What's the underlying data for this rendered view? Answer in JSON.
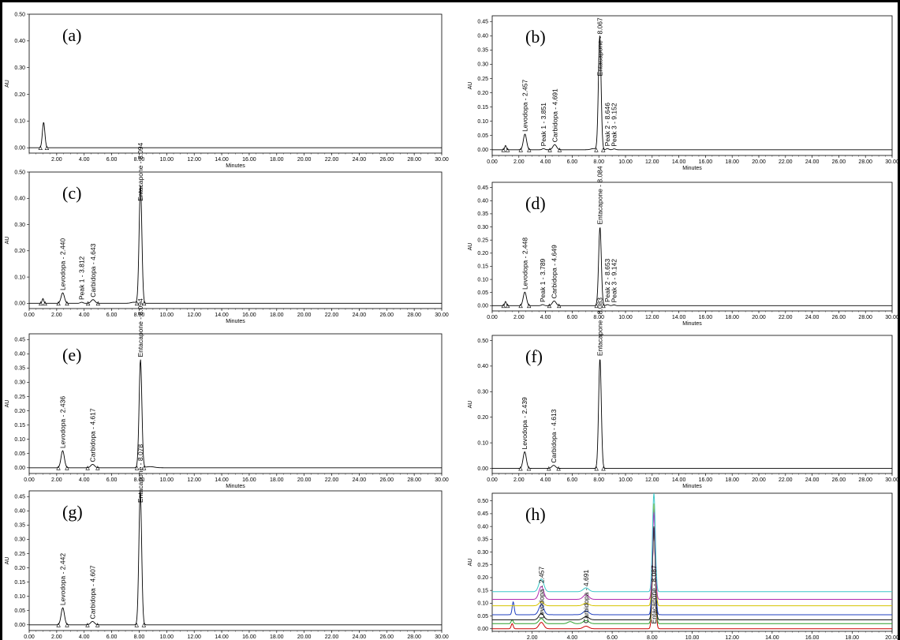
{
  "chart_data": [
    {
      "type": "line",
      "panel_label": "(a)",
      "xlabel": "Minutes",
      "ylabel": "AU",
      "xlim": [
        0,
        30
      ],
      "ylim": [
        -0.02,
        0.5
      ],
      "xticks": [
        "2.00",
        "4.00",
        "6.00",
        "8.00",
        "10.00",
        "12.00",
        "14.00",
        "16.00",
        "18.00",
        "20.00",
        "22.00",
        "24.00",
        "26.00",
        "28.00",
        "30.00"
      ],
      "yticks": [
        "0.00",
        "0.10",
        "0.20",
        "0.30",
        "0.40",
        "0.50"
      ],
      "series": [
        {
          "color": "#000000",
          "peaks": [
            {
              "rt": 1.05,
              "height": 0.095,
              "width": 0.09
            }
          ]
        }
      ],
      "labels": []
    },
    {
      "type": "line",
      "panel_label": "(b)",
      "xlabel": "Minutes",
      "ylabel": "AU",
      "xlim": [
        0,
        30
      ],
      "ylim": [
        -0.02,
        0.47
      ],
      "xticks": [
        "0.00",
        "2.00",
        "4.00",
        "6.00",
        "8.00",
        "10.00",
        "12.00",
        "14.00",
        "16.00",
        "18.00",
        "20.00",
        "22.00",
        "24.00",
        "26.00",
        "28.00",
        "30.00"
      ],
      "yticks": [
        "0.00",
        "0.05",
        "0.10",
        "0.15",
        "0.20",
        "0.25",
        "0.30",
        "0.35",
        "0.40",
        "0.45"
      ],
      "series": [
        {
          "color": "#000000",
          "peaks": [
            {
              "rt": 1.0,
              "height": 0.015,
              "width": 0.06
            },
            {
              "rt": 2.457,
              "height": 0.055,
              "width": 0.12
            },
            {
              "rt": 3.851,
              "height": 0.004,
              "width": 0.1
            },
            {
              "rt": 4.691,
              "height": 0.018,
              "width": 0.14
            },
            {
              "rt": 7.6,
              "height": 0.004,
              "width": 0.2
            },
            {
              "rt": 8.067,
              "height": 0.4,
              "width": 0.1
            },
            {
              "rt": 8.646,
              "height": 0.004,
              "width": 0.1
            },
            {
              "rt": 9.152,
              "height": 0.003,
              "width": 0.1
            }
          ]
        }
      ],
      "labels": [
        {
          "text": "Levodopa - 2.457",
          "rt": 2.457,
          "y": 0.055
        },
        {
          "text": "Peak 1 - 3.851",
          "rt": 3.851,
          "y": 0.004
        },
        {
          "text": "Carbidopa - 4.691",
          "rt": 4.691,
          "y": 0.018
        },
        {
          "text": "Entacapone - 8.067",
          "rt": 8.067,
          "y": 0.25
        },
        {
          "text": "Peak 2 - 8.646",
          "rt": 8.646,
          "y": 0.004
        },
        {
          "text": "Peak 3 - 9.152",
          "rt": 9.152,
          "y": 0.003
        }
      ]
    },
    {
      "type": "line",
      "panel_label": "(c)",
      "xlabel": "Minutes",
      "ylabel": "AU",
      "xlim": [
        0,
        30
      ],
      "ylim": [
        -0.02,
        0.5
      ],
      "xticks": [
        "0.00",
        "2.00",
        "4.00",
        "6.00",
        "8.00",
        "10.00",
        "12.00",
        "14.00",
        "16.00",
        "18.00",
        "20.00",
        "22.00",
        "24.00",
        "26.00",
        "28.00",
        "30.00"
      ],
      "yticks": [
        "0.00",
        "0.10",
        "0.20",
        "0.30",
        "0.40",
        "0.50"
      ],
      "series": [
        {
          "color": "#000000",
          "peaks": [
            {
              "rt": 1.0,
              "height": 0.018,
              "width": 0.06
            },
            {
              "rt": 2.44,
              "height": 0.04,
              "width": 0.12
            },
            {
              "rt": 3.812,
              "height": 0.004,
              "width": 0.1
            },
            {
              "rt": 4.643,
              "height": 0.014,
              "width": 0.14
            },
            {
              "rt": 7.6,
              "height": 0.004,
              "width": 0.2
            },
            {
              "rt": 8.094,
              "height": 0.45,
              "width": 0.1
            }
          ]
        }
      ],
      "labels": [
        {
          "text": "Levodopa - 2.440",
          "rt": 2.44,
          "y": 0.04
        },
        {
          "text": "Peak 1 - 3.812",
          "rt": 3.812,
          "y": 0.004
        },
        {
          "text": "Carbidopa - 4.643",
          "rt": 4.643,
          "y": 0.014
        },
        {
          "text": "Entacapone - 8.094",
          "rt": 8.094,
          "y": 0.38
        }
      ]
    },
    {
      "type": "line",
      "panel_label": "(d)",
      "xlabel": "Minutes",
      "ylabel": "AU",
      "xlim": [
        0,
        30
      ],
      "ylim": [
        -0.02,
        0.47
      ],
      "xticks": [
        "0.00",
        "2.00",
        "4.00",
        "6.00",
        "8.00",
        "10.00",
        "12.00",
        "14.00",
        "16.00",
        "18.00",
        "20.00",
        "22.00",
        "24.00",
        "26.00",
        "28.00",
        "30.00"
      ],
      "yticks": [
        "0.00",
        "0.05",
        "0.10",
        "0.15",
        "0.20",
        "0.25",
        "0.30",
        "0.35",
        "0.40",
        "0.45"
      ],
      "series": [
        {
          "color": "#000000",
          "peaks": [
            {
              "rt": 1.0,
              "height": 0.016,
              "width": 0.06
            },
            {
              "rt": 2.448,
              "height": 0.052,
              "width": 0.12
            },
            {
              "rt": 3.789,
              "height": 0.004,
              "width": 0.1
            },
            {
              "rt": 4.649,
              "height": 0.018,
              "width": 0.14
            },
            {
              "rt": 8.084,
              "height": 0.3,
              "width": 0.1
            },
            {
              "rt": 8.653,
              "height": 0.004,
              "width": 0.1
            },
            {
              "rt": 9.142,
              "height": 0.003,
              "width": 0.1
            }
          ]
        }
      ],
      "labels": [
        {
          "text": "Levodopa - 2.448",
          "rt": 2.448,
          "y": 0.052
        },
        {
          "text": "Peak 1 - 3.789",
          "rt": 3.789,
          "y": 0.004
        },
        {
          "text": "Carbidopa - 4.649",
          "rt": 4.649,
          "y": 0.018
        },
        {
          "text": "Entacapone - 8.084",
          "rt": 8.084,
          "y": 0.3
        },
        {
          "text": "Peak 2 - 8.653",
          "rt": 8.653,
          "y": 0.004
        },
        {
          "text": "Peak 3 - 9.142",
          "rt": 9.142,
          "y": 0.003
        }
      ]
    },
    {
      "type": "line",
      "panel_label": "(e)",
      "xlabel": "Minutes",
      "ylabel": "AU",
      "xlim": [
        0,
        30
      ],
      "ylim": [
        -0.02,
        0.47
      ],
      "xticks": [
        "0.00",
        "2.00",
        "4.00",
        "6.00",
        "8.00",
        "10.00",
        "12.00",
        "14.00",
        "16.00",
        "18.00",
        "20.00",
        "22.00",
        "24.00",
        "26.00",
        "28.00",
        "30.00"
      ],
      "yticks": [
        "0.00",
        "0.05",
        "0.10",
        "0.15",
        "0.20",
        "0.25",
        "0.30",
        "0.35",
        "0.40",
        "0.45"
      ],
      "series": [
        {
          "color": "#000000",
          "peaks": [
            {
              "rt": 2.436,
              "height": 0.06,
              "width": 0.12
            },
            {
              "rt": 4.617,
              "height": 0.012,
              "width": 0.14
            },
            {
              "rt": 8.094,
              "height": 0.38,
              "width": 0.1
            },
            {
              "rt": 8.8,
              "height": 0.004,
              "width": 0.3
            }
          ]
        }
      ],
      "labels": [
        {
          "text": "Levodopa - 2.436",
          "rt": 2.436,
          "y": 0.06
        },
        {
          "text": "Carbidopa - 4.617",
          "rt": 4.617,
          "y": 0.012
        },
        {
          "text": "Entacapone - 8.094",
          "rt": 8.094,
          "y": 0.38
        }
      ]
    },
    {
      "type": "line",
      "panel_label": "(f)",
      "xlabel": "Minutes",
      "ylabel": "AU",
      "xlim": [
        0,
        30
      ],
      "ylim": [
        -0.02,
        0.52
      ],
      "xticks": [
        "0.00",
        "2.00",
        "4.00",
        "6.00",
        "8.00",
        "10.00",
        "12.00",
        "14.00",
        "16.00",
        "18.00",
        "20.00",
        "22.00",
        "24.00",
        "26.00",
        "28.00",
        "30.00"
      ],
      "yticks": [
        "0.00",
        "0.10",
        "0.20",
        "0.30",
        "0.40",
        "0.50"
      ],
      "series": [
        {
          "color": "#000000",
          "peaks": [
            {
              "rt": 2.439,
              "height": 0.065,
              "width": 0.12
            },
            {
              "rt": 4.613,
              "height": 0.012,
              "width": 0.14
            },
            {
              "rt": 8.083,
              "height": 0.43,
              "width": 0.1
            }
          ]
        }
      ],
      "labels": [
        {
          "text": "Levodopa - 2.439",
          "rt": 2.439,
          "y": 0.065
        },
        {
          "text": "Carbidopa - 4.613",
          "rt": 4.613,
          "y": 0.012
        },
        {
          "text": "Entacapone - 8.083",
          "rt": 8.083,
          "y": 0.43
        }
      ]
    },
    {
      "type": "line",
      "panel_label": "(g)",
      "xlabel": "Minutes",
      "ylabel": "AU",
      "xlim": [
        0,
        30
      ],
      "ylim": [
        -0.02,
        0.47
      ],
      "xticks": [
        "0.00",
        "2.00",
        "4.00",
        "6.00",
        "8.00",
        "10.00",
        "12.00",
        "14.00",
        "16.00",
        "18.00",
        "20.00",
        "22.00",
        "24.00",
        "26.00",
        "28.00",
        "30.00"
      ],
      "yticks": [
        "0.00",
        "0.05",
        "0.10",
        "0.15",
        "0.20",
        "0.25",
        "0.30",
        "0.35",
        "0.40",
        "0.45"
      ],
      "series": [
        {
          "color": "#000000",
          "peaks": [
            {
              "rt": 2.442,
              "height": 0.06,
              "width": 0.12
            },
            {
              "rt": 4.607,
              "height": 0.012,
              "width": 0.14
            },
            {
              "rt": 8.078,
              "height": 0.47,
              "width": 0.1
            }
          ]
        }
      ],
      "labels": [
        {
          "text": "Levodopa - 2.442",
          "rt": 2.442,
          "y": 0.06
        },
        {
          "text": "Carbidopa - 4.607",
          "rt": 4.607,
          "y": 0.012
        },
        {
          "text": "Entacapone - 8.078",
          "rt": 8.078,
          "y": 0.42
        }
      ]
    },
    {
      "type": "line",
      "panel_label": "(h)",
      "xlabel": "",
      "ylabel": "AU",
      "xlim": [
        0,
        20
      ],
      "ylim": [
        -0.01,
        0.53
      ],
      "xticks": [
        "2.00",
        "4.00",
        "6.00",
        "8.00",
        "10.00",
        "12.00",
        "14.00",
        "16.00",
        "18.00",
        "20.00"
      ],
      "yticks": [
        "0.00",
        "0.05",
        "0.10",
        "0.15",
        "0.20",
        "0.25",
        "0.30",
        "0.35",
        "0.40",
        "0.45",
        "0.50"
      ],
      "series": [
        {
          "color": "#cc0000",
          "offset": 0.0,
          "peaks": [
            {
              "rt": 1.0,
              "height": 0.02,
              "width": 0.05
            },
            {
              "rt": 2.457,
              "height": 0.025,
              "width": 0.12
            },
            {
              "rt": 4.691,
              "height": 0.01,
              "width": 0.14
            },
            {
              "rt": 8.087,
              "height": 0.4,
              "width": 0.07
            }
          ]
        },
        {
          "color": "#2a9d2a",
          "offset": 0.02,
          "peaks": [
            {
              "rt": 1.0,
              "height": 0.015,
              "width": 0.05
            },
            {
              "rt": 2.457,
              "height": 0.02,
              "width": 0.12
            },
            {
              "rt": 3.9,
              "height": 0.008,
              "width": 0.12
            },
            {
              "rt": 4.691,
              "height": 0.012,
              "width": 0.14
            },
            {
              "rt": 8.087,
              "height": 0.38,
              "width": 0.07
            }
          ]
        },
        {
          "color": "#111111",
          "offset": 0.035,
          "peaks": [
            {
              "rt": 2.457,
              "height": 0.025,
              "width": 0.12
            },
            {
              "rt": 4.691,
              "height": 0.012,
              "width": 0.14
            },
            {
              "rt": 8.087,
              "height": 0.36,
              "width": 0.07
            }
          ]
        },
        {
          "color": "#1f3fbf",
          "offset": 0.055,
          "peaks": [
            {
              "rt": 1.05,
              "height": 0.05,
              "width": 0.05
            },
            {
              "rt": 2.457,
              "height": 0.04,
              "width": 0.12
            },
            {
              "rt": 4.691,
              "height": 0.015,
              "width": 0.14
            },
            {
              "rt": 8.087,
              "height": 0.42,
              "width": 0.07
            }
          ]
        },
        {
          "color": "#d6c400",
          "offset": 0.09,
          "peaks": [
            {
              "rt": 2.457,
              "height": 0.015,
              "width": 0.12
            },
            {
              "rt": 4.691,
              "height": 0.01,
              "width": 0.14
            },
            {
              "rt": 8.087,
              "height": 0.4,
              "width": 0.07
            }
          ]
        },
        {
          "color": "#b02bb0",
          "offset": 0.115,
          "peaks": [
            {
              "rt": 2.457,
              "height": 0.05,
              "width": 0.12
            },
            {
              "rt": 4.691,
              "height": 0.018,
              "width": 0.14
            },
            {
              "rt": 8.087,
              "height": 0.34,
              "width": 0.07
            }
          ]
        },
        {
          "color": "#3cc8c8",
          "offset": 0.145,
          "peaks": [
            {
              "rt": 2.457,
              "height": 0.05,
              "width": 0.12
            },
            {
              "rt": 4.691,
              "height": 0.015,
              "width": 0.14
            },
            {
              "rt": 8.087,
              "height": 0.385,
              "width": 0.07
            }
          ]
        }
      ],
      "labels": [
        {
          "text": "Levodopa - 2.457",
          "rt": 2.457,
          "y": 0.03
        },
        {
          "text": "Carbidopa - 4.691",
          "rt": 4.691,
          "y": 0.012
        },
        {
          "text": "Entacapone - 8.087",
          "rt": 8.087,
          "y": 0.01
        }
      ]
    }
  ]
}
